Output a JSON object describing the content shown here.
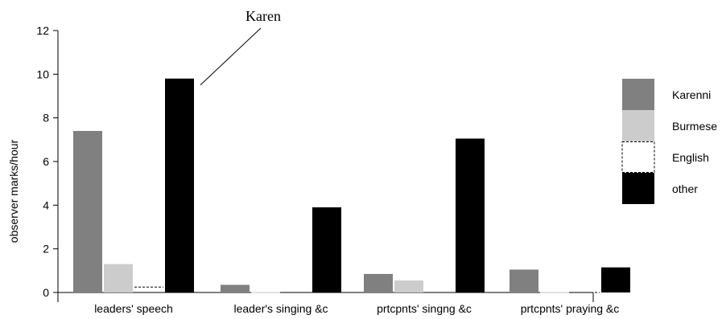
{
  "chart_data": {
    "type": "bar",
    "categories": [
      "leaders' speech",
      "leader's singing &c",
      "prtcpnts' singng &c",
      "prtcpnts' praying &c"
    ],
    "series": [
      {
        "name": "Karenni",
        "values": [
          7.4,
          0.35,
          0.85,
          1.05
        ],
        "color": "#808080"
      },
      {
        "name": "Burmese",
        "values": [
          1.3,
          0.02,
          0.55,
          0.02
        ],
        "color": "#cccccc"
      },
      {
        "name": "English",
        "values": [
          0.25,
          0,
          0,
          0
        ],
        "color": "#ffffff",
        "style": "dashed"
      },
      {
        "name": "other",
        "values": [
          9.8,
          3.9,
          7.05,
          1.15
        ],
        "color": "#000000"
      }
    ],
    "ylabel": "observer marks/hour",
    "xlabel": "",
    "ylim": [
      0,
      12
    ],
    "yticks": [
      0,
      2,
      4,
      6,
      8,
      10,
      12
    ],
    "grid": false,
    "legend_position": "right",
    "annotation": {
      "text": "Karen",
      "target_category": "leaders' speech",
      "target_series": "other"
    }
  }
}
